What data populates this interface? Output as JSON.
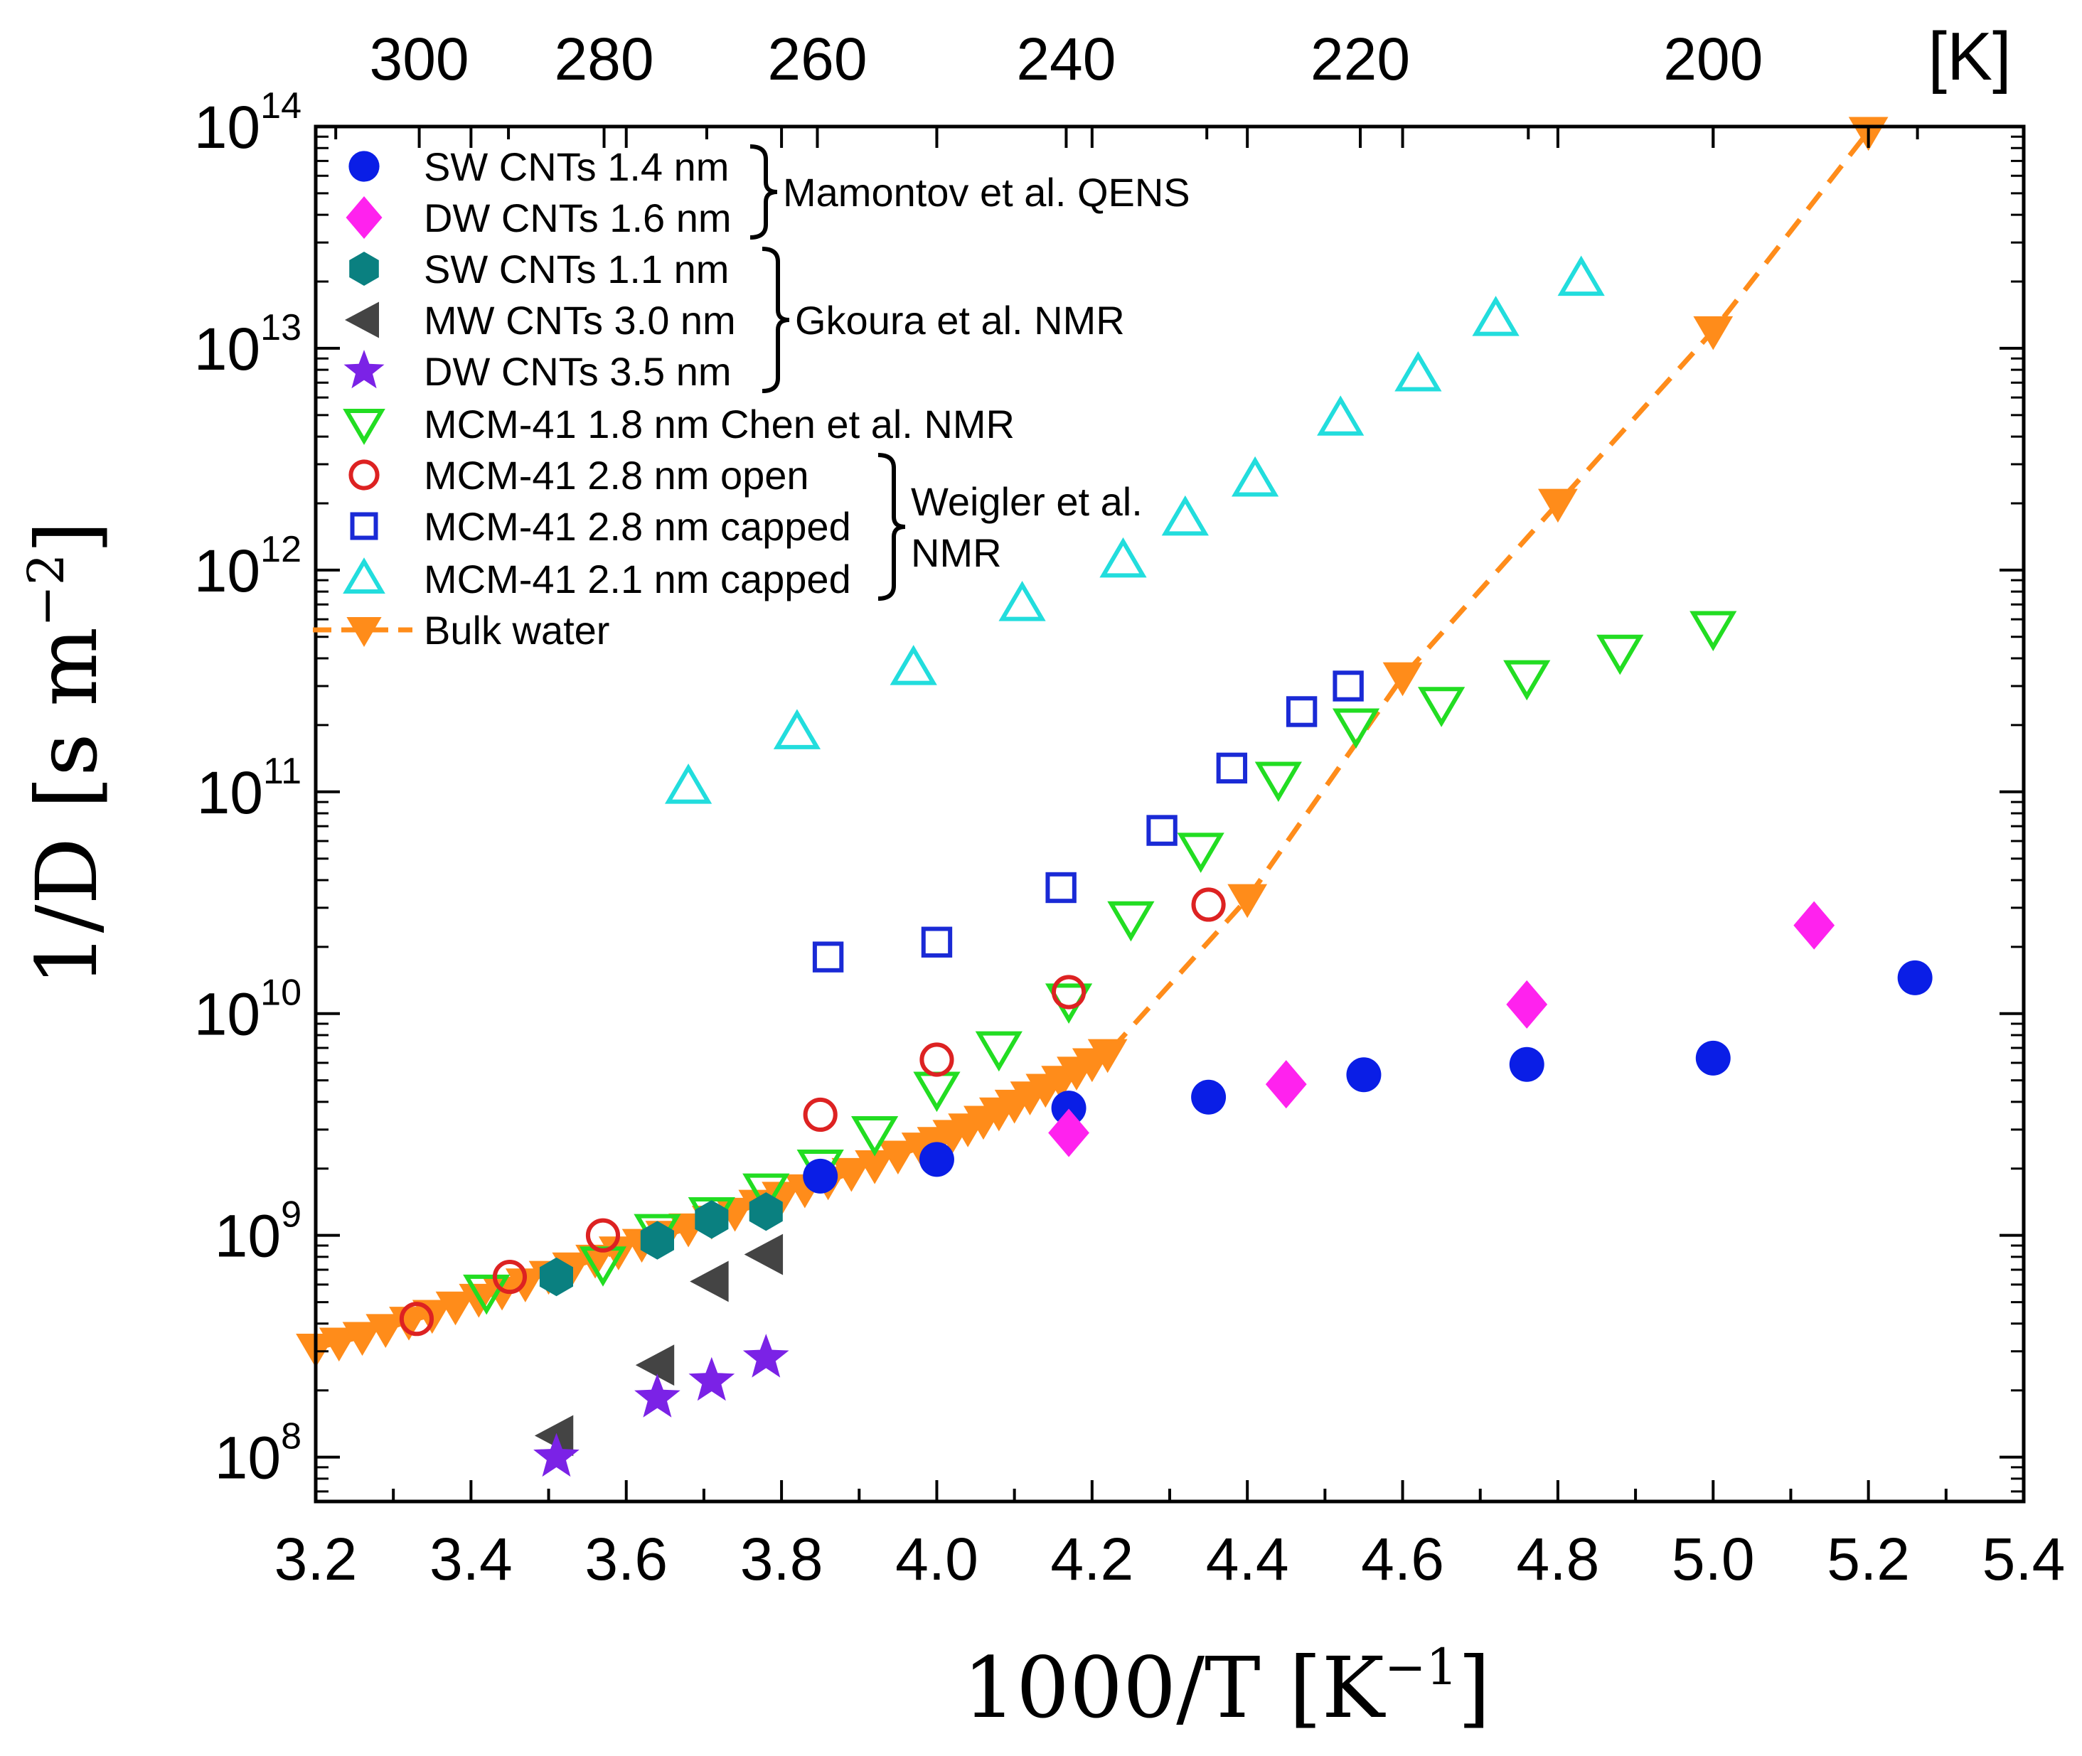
{
  "chart_data": {
    "type": "scatter",
    "title": "",
    "xlabel": "1000/T",
    "xlabel_unit": "[K",
    "xlabel_unit_exp": "−1",
    "xlabel_unit_close": "]",
    "ylabel": "1/D",
    "ylabel_unit": "[s m",
    "ylabel_unit_exp": "−2",
    "ylabel_unit_close": "]",
    "top_axis_unit": "[K]",
    "xlim": [
      3.2,
      5.4
    ],
    "ylim_log10": [
      7.8,
      14.0
    ],
    "x_ticks": [
      "3.2",
      "3.4",
      "3.6",
      "3.8",
      "4.0",
      "4.2",
      "4.4",
      "4.6",
      "4.8",
      "5.0",
      "5.2",
      "5.4"
    ],
    "y_ticks": [
      {
        "base": "10",
        "exp": "8"
      },
      {
        "base": "10",
        "exp": "9"
      },
      {
        "base": "10",
        "exp": "10"
      },
      {
        "base": "10",
        "exp": "11"
      },
      {
        "base": "10",
        "exp": "12"
      },
      {
        "base": "10",
        "exp": "13"
      },
      {
        "base": "10",
        "exp": "14"
      }
    ],
    "top_ticks": [
      "300",
      "280",
      "260",
      "240",
      "220",
      "200"
    ],
    "series": [
      {
        "name": "SW CNTs 1.4 nm",
        "marker": "circle-filled",
        "color": "#0a1ee6",
        "points": [
          [
            3.85,
            1850000000.0
          ],
          [
            4.0,
            2200000000.0
          ],
          [
            4.17,
            3750000000.0
          ],
          [
            4.35,
            4200000000.0
          ],
          [
            4.55,
            5300000000.0
          ],
          [
            4.76,
            5900000000.0
          ],
          [
            5.0,
            6300000000.0
          ],
          [
            5.26,
            14500000000.0
          ]
        ]
      },
      {
        "name": "DW CNTs 1.6 nm",
        "marker": "diamond-filled",
        "color": "#ff22ee",
        "points": [
          [
            4.17,
            2900000000.0
          ],
          [
            4.45,
            4800000000.0
          ],
          [
            4.76,
            11000000000.0
          ],
          [
            5.13,
            25000000000.0
          ]
        ]
      },
      {
        "name": "SW CNTs 1.1 nm",
        "marker": "hexagon-filled",
        "color": "#0a8080",
        "points": [
          [
            3.51,
            650000000.0
          ],
          [
            3.64,
            950000000.0
          ],
          [
            3.71,
            1180000000.0
          ],
          [
            3.78,
            1280000000.0
          ]
        ]
      },
      {
        "name": "MW CNTs 3.0 nm",
        "marker": "triangle-left-filled",
        "color": "#444444",
        "points": [
          [
            3.51,
            125000000.0
          ],
          [
            3.64,
            260000000.0
          ],
          [
            3.71,
            620000000.0
          ],
          [
            3.78,
            820000000.0
          ]
        ]
      },
      {
        "name": "DW CNTs 3.5 nm",
        "marker": "star-filled",
        "color": "#7b22e6",
        "points": [
          [
            3.51,
            100000000.0
          ],
          [
            3.64,
            185000000.0
          ],
          [
            3.71,
            220000000.0
          ],
          [
            3.78,
            280000000.0
          ]
        ]
      },
      {
        "name": "MCM-41 1.8 nm Chen et al. NMR",
        "marker": "triangle-down-open",
        "color": "#22dd22",
        "points": [
          [
            3.42,
            560000000.0
          ],
          [
            3.57,
            750000000.0
          ],
          [
            3.64,
            1050000000.0
          ],
          [
            3.71,
            1250000000.0
          ],
          [
            3.78,
            1600000000.0
          ],
          [
            3.85,
            2050000000.0
          ],
          [
            3.92,
            2900000000.0
          ],
          [
            4.0,
            4600000000.0
          ],
          [
            4.08,
            7000000000.0
          ],
          [
            4.17,
            11500000000.0
          ],
          [
            4.25,
            27000000000.0
          ],
          [
            4.34,
            55000000000.0
          ],
          [
            4.44,
            115000000000.0
          ],
          [
            4.54,
            200000000000.0
          ],
          [
            4.65,
            250000000000.0
          ],
          [
            4.76,
            330000000000.0
          ],
          [
            4.88,
            430000000000.0
          ],
          [
            5.0,
            550000000000.0
          ]
        ]
      },
      {
        "name": "MCM-41 2.8 nm open",
        "marker": "circle-open",
        "color": "#dd2222",
        "points": [
          [
            3.33,
            420000000.0
          ],
          [
            3.45,
            650000000.0
          ],
          [
            3.57,
            1000000000.0
          ],
          [
            3.85,
            3500000000.0
          ],
          [
            4.0,
            6200000000.0
          ],
          [
            4.17,
            12500000000.0
          ],
          [
            4.35,
            31000000000.0
          ]
        ]
      },
      {
        "name": "MCM-41 2.8 nm capped",
        "marker": "square-open",
        "color": "#1a2ad6",
        "points": [
          [
            3.86,
            18000000000.0
          ],
          [
            4.0,
            21000000000.0
          ],
          [
            4.16,
            37000000000.0
          ],
          [
            4.29,
            67000000000.0
          ],
          [
            4.38,
            128000000000.0
          ],
          [
            4.47,
            230000000000.0
          ],
          [
            4.53,
            300000000000.0
          ]
        ]
      },
      {
        "name": "MCM-41 2.1 nm capped",
        "marker": "triangle-up-open",
        "color": "#22dddd",
        "points": [
          [
            3.68,
            105000000000.0
          ],
          [
            3.82,
            185000000000.0
          ],
          [
            3.97,
            360000000000.0
          ],
          [
            4.11,
            700000000000.0
          ],
          [
            4.24,
            1100000000000.0
          ],
          [
            4.32,
            1700000000000.0
          ],
          [
            4.41,
            2550000000000.0
          ],
          [
            4.52,
            4800000000000.0
          ],
          [
            4.62,
            7600000000000.0
          ],
          [
            4.72,
            13500000000000.0
          ],
          [
            4.83,
            20500000000000.0
          ]
        ]
      },
      {
        "name": "Bulk water",
        "marker": "triangle-down-filled",
        "color": "#ff8c1a",
        "line": "dashed",
        "points": [
          [
            3.2,
            310000000.0
          ],
          [
            3.23,
            330000000.0
          ],
          [
            3.26,
            350000000.0
          ],
          [
            3.29,
            380000000.0
          ],
          [
            3.32,
            410000000.0
          ],
          [
            3.35,
            440000000.0
          ],
          [
            3.38,
            480000000.0
          ],
          [
            3.41,
            520000000.0
          ],
          [
            3.44,
            560000000.0
          ],
          [
            3.47,
            610000000.0
          ],
          [
            3.5,
            660000000.0
          ],
          [
            3.53,
            720000000.0
          ],
          [
            3.56,
            780000000.0
          ],
          [
            3.59,
            850000000.0
          ],
          [
            3.62,
            920000000.0
          ],
          [
            3.65,
            1000000000.0
          ],
          [
            3.68,
            1080000000.0
          ],
          [
            3.71,
            1170000000.0
          ],
          [
            3.74,
            1270000000.0
          ],
          [
            3.77,
            1380000000.0
          ],
          [
            3.8,
            1500000000.0
          ],
          [
            3.83,
            1620000000.0
          ],
          [
            3.86,
            1760000000.0
          ],
          [
            3.89,
            1920000000.0
          ],
          [
            3.92,
            2080000000.0
          ],
          [
            3.95,
            2300000000.0
          ],
          [
            3.98,
            2500000000.0
          ],
          [
            4.0,
            2650000000.0
          ],
          [
            4.02,
            2850000000.0
          ],
          [
            4.04,
            3050000000.0
          ],
          [
            4.06,
            3300000000.0
          ],
          [
            4.08,
            3600000000.0
          ],
          [
            4.1,
            3900000000.0
          ],
          [
            4.12,
            4250000000.0
          ],
          [
            4.14,
            4600000000.0
          ],
          [
            4.16,
            5000000000.0
          ],
          [
            4.18,
            5500000000.0
          ],
          [
            4.2,
            6000000000.0
          ],
          [
            4.22,
            6600000000.0
          ],
          [
            4.4,
            33000000000.0
          ],
          [
            4.6,
            330000000000.0
          ],
          [
            4.8,
            2000000000000.0
          ],
          [
            5.0,
            12000000000000.0
          ],
          [
            5.2,
            95000000000000.0
          ]
        ]
      }
    ],
    "groups": [
      {
        "label_lines": [
          "Mamontov et al. QENS"
        ],
        "members": [
          0,
          1
        ]
      },
      {
        "label_lines": [
          "Gkoura et al. NMR"
        ],
        "members": [
          2,
          3,
          4
        ]
      },
      {
        "label_lines": [
          "Weigler et al.",
          "NMR"
        ],
        "members": [
          6,
          7,
          8
        ]
      }
    ],
    "legend_position": "top-left"
  }
}
